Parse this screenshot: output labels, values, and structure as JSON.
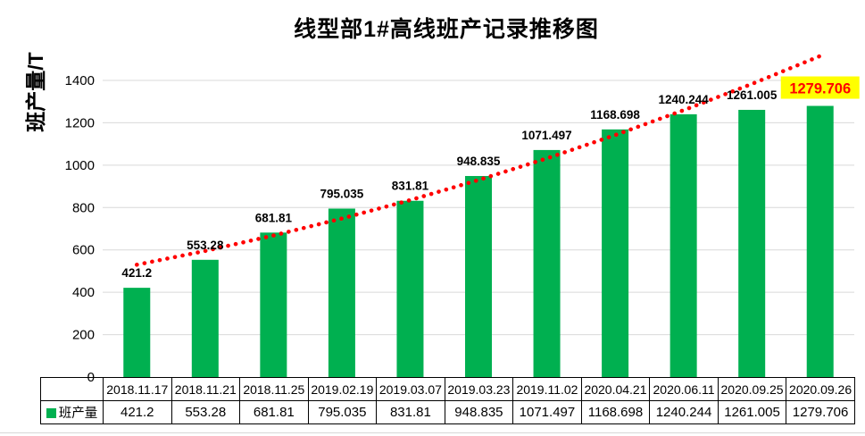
{
  "chart_data": {
    "type": "bar",
    "title": "线型部1#高线班产记录推移图",
    "ylabel": "班产量/T",
    "xlabel": "",
    "categories": [
      "2018.11.17",
      "2018.11.21",
      "2018.11.25",
      "2019.02.19",
      "2019.03.07",
      "2019.03.23",
      "2019.11.02",
      "2020.04.21",
      "2020.06.11",
      "2020.09.25",
      "2020.09.26"
    ],
    "series": [
      {
        "name": "班产量",
        "values": [
          421.2,
          553.28,
          681.81,
          795.035,
          831.81,
          948.835,
          1071.497,
          1168.698,
          1240.244,
          1261.005,
          1279.706
        ]
      }
    ],
    "value_labels": [
      "421.2",
      "553.28",
      "681.81",
      "795.035",
      "831.81",
      "948.835",
      "1071.497",
      "1168.698",
      "1240.244",
      "1261.005",
      "1279.706"
    ],
    "ylim": [
      0,
      1400
    ],
    "yticks": [
      0,
      200,
      400,
      600,
      800,
      1000,
      1200,
      1400
    ],
    "grid": true,
    "legend": {
      "label": "班产量",
      "position": "table-row-header"
    },
    "table_shown": true,
    "highlight_last_label": true,
    "trendline": {
      "style": "dotted",
      "color": "#FF0000",
      "approx_values": [
        530,
        595,
        668,
        748,
        835,
        930,
        1032,
        1142,
        1259,
        1383,
        1515
      ]
    },
    "colors": {
      "bar": "#00B050",
      "grid": "#D9D9D9",
      "trend": "#FF0000",
      "highlight_bg": "#FFFF00",
      "highlight_text": "#FF0000",
      "label_text": "#000000"
    }
  }
}
